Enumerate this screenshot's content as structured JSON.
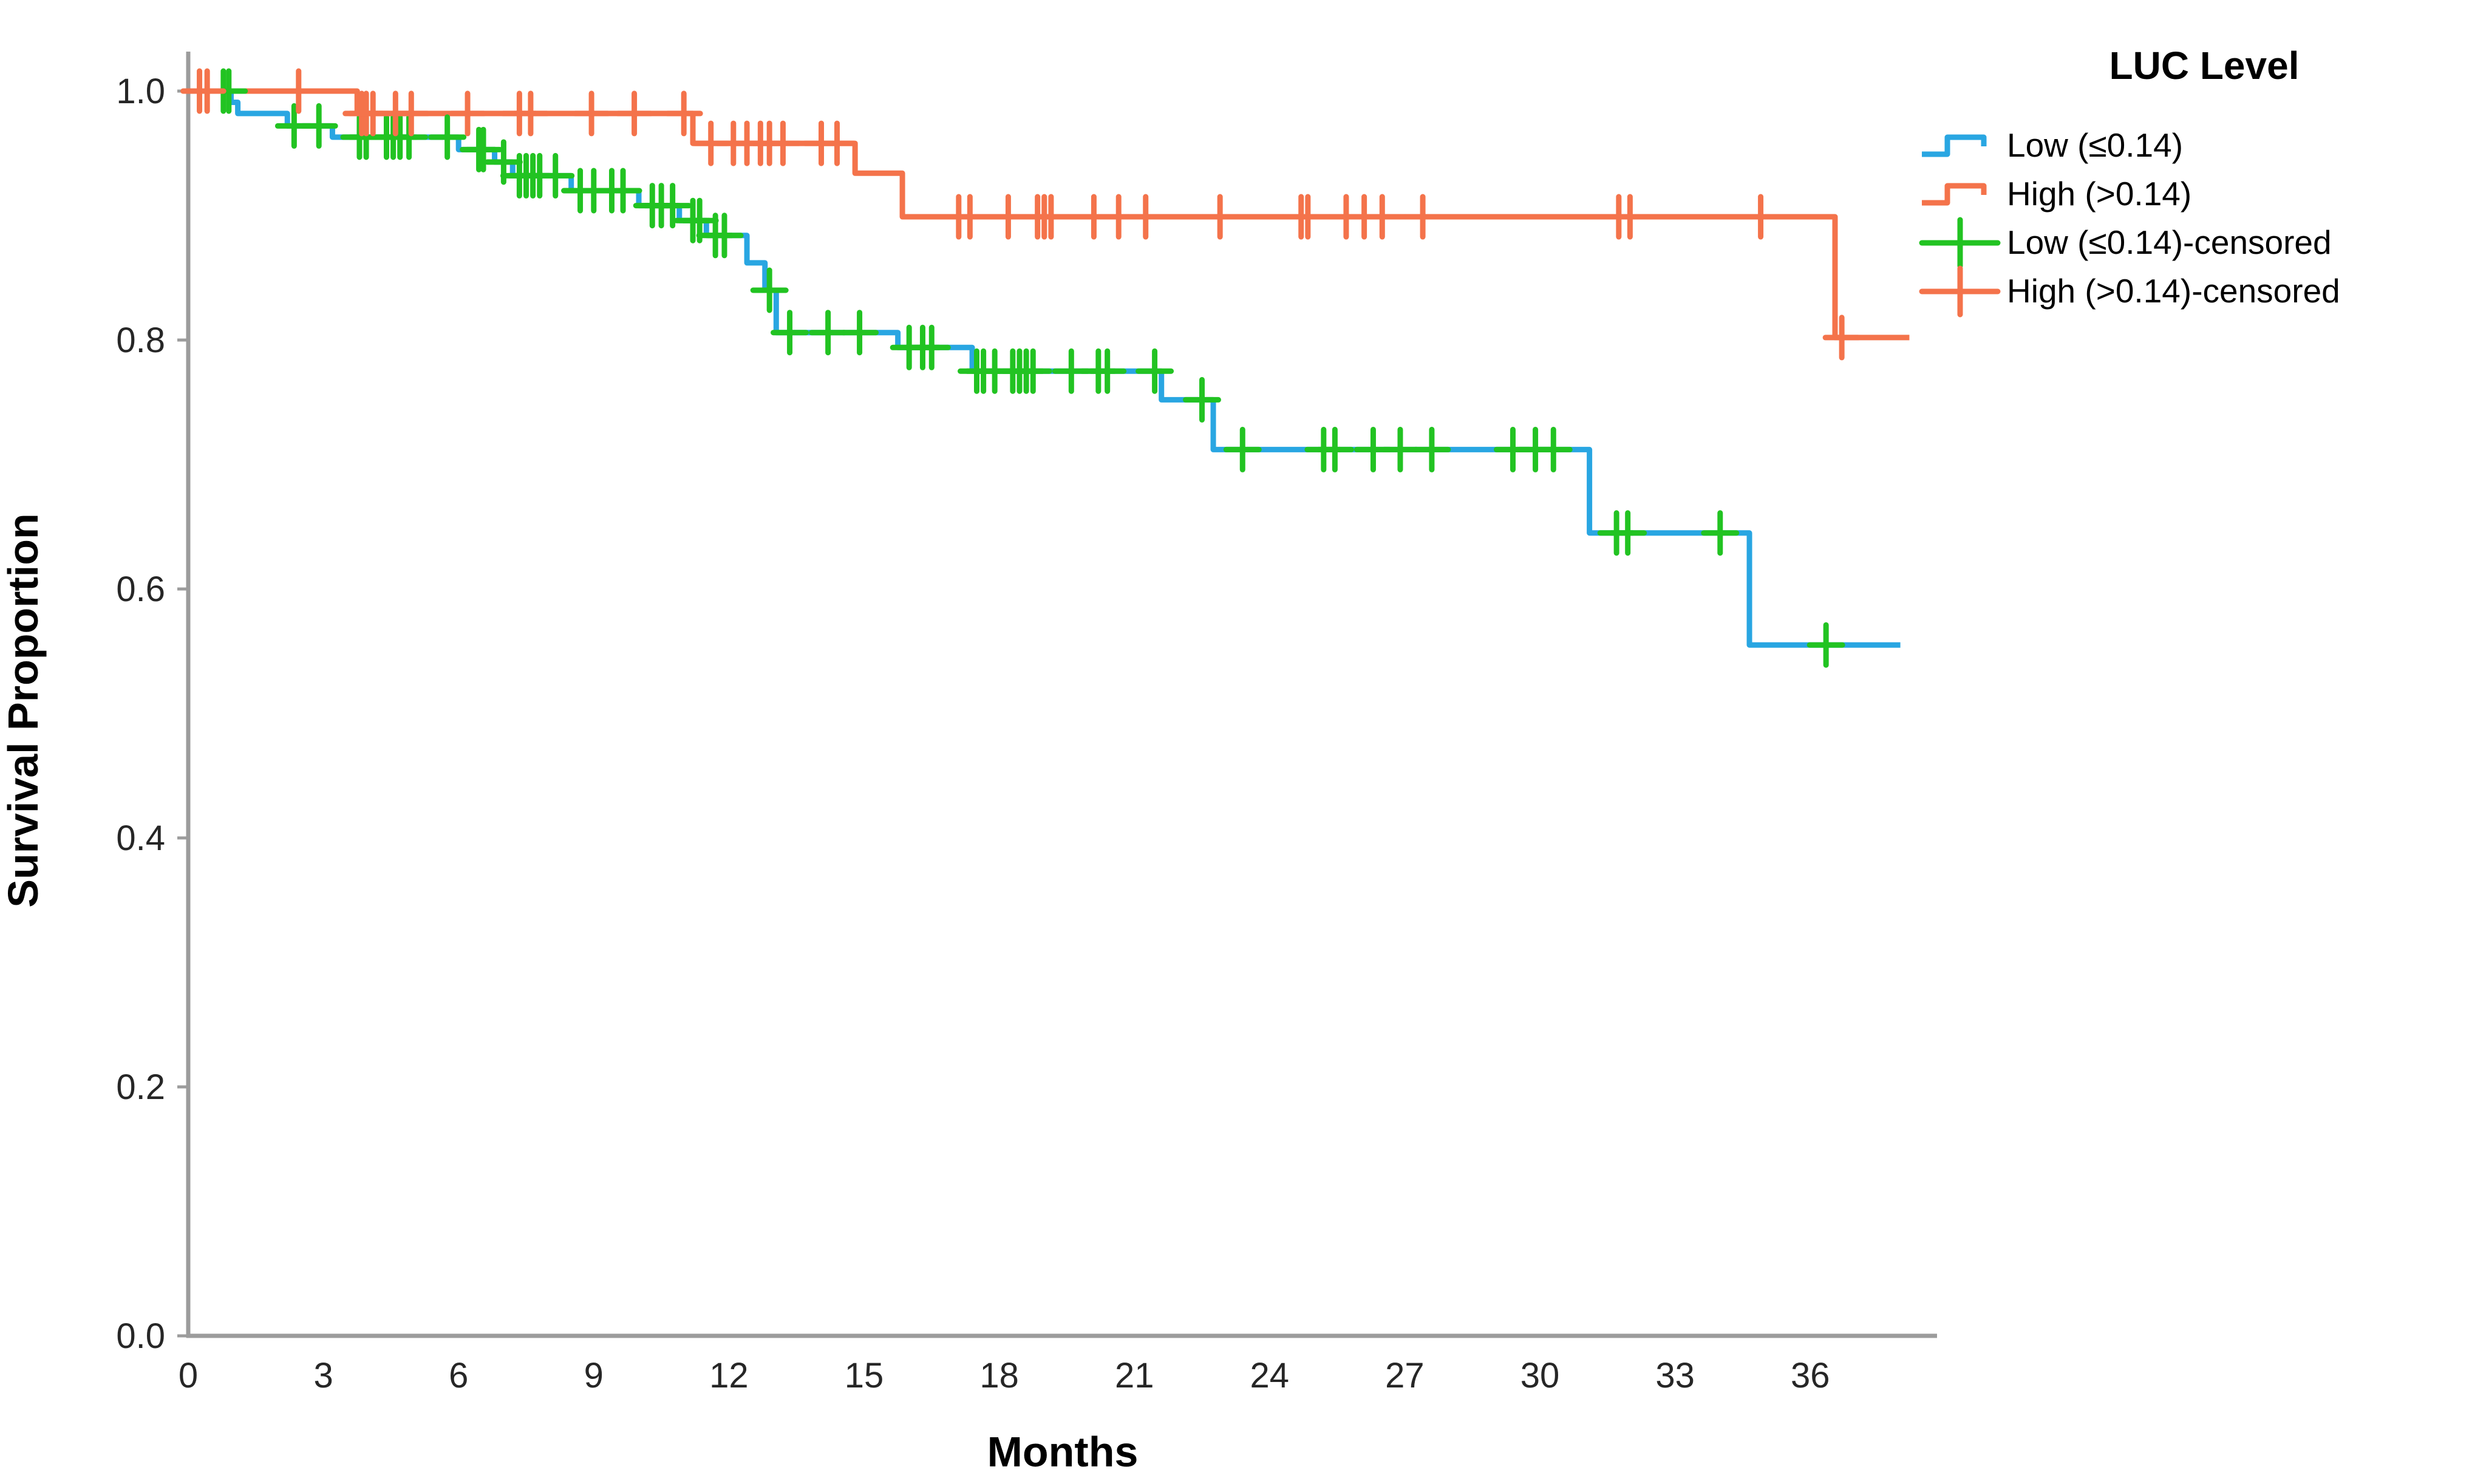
{
  "chart_data": {
    "type": "line",
    "subtype": "kaplan_meier_step",
    "title": "",
    "xlabel": "Months",
    "ylabel": "Survival Proportion",
    "xlim": [
      0,
      38.8
    ],
    "ylim": [
      0.0,
      1.0
    ],
    "grid": false,
    "x_ticks": [
      0,
      3,
      6,
      9,
      12,
      15,
      18,
      21,
      24,
      27,
      30,
      33,
      36
    ],
    "x_tick_labels": [
      "0",
      "3",
      "6",
      "9",
      "12",
      "15",
      "18",
      "21",
      "24",
      "27",
      "30",
      "33",
      "36"
    ],
    "y_ticks": [
      1.0,
      0.8,
      0.6,
      0.4,
      0.2,
      0.0
    ],
    "y_tick_labels": [
      "1.0",
      "0.8",
      "0.6",
      "0.4",
      "0.2",
      "0.0"
    ],
    "colors": {
      "low_line": "#29A6E2",
      "high_line": "#F4734B",
      "low_censor": "#22C322",
      "high_censor": "#F4734B",
      "axis": "#9C9C9C",
      "text": "#1a1a1a",
      "background": "#ffffff"
    },
    "legend": {
      "title": "LUC Level",
      "position": "top-right",
      "entries": [
        {
          "label": "Low (≤0.14)",
          "color": "#29A6E2",
          "key": "step"
        },
        {
          "label": "High (>0.14)",
          "color": "#F4734B",
          "key": "step"
        },
        {
          "label": "Low (≤0.14)-censored",
          "color": "#22C322",
          "key": "plus"
        },
        {
          "label": "High (>0.14)-censored",
          "color": "#F4734B",
          "key": "plus"
        }
      ]
    },
    "series": [
      {
        "name": "Low (≤0.14)",
        "color": "#29A6E2",
        "censor_color": "#22C322",
        "end_x": 38.0,
        "steps": [
          [
            0,
            1.0
          ],
          [
            0.95,
            0.991
          ],
          [
            1.1,
            0.982
          ],
          [
            2.2,
            0.972
          ],
          [
            3.2,
            0.963
          ],
          [
            6.0,
            0.953
          ],
          [
            6.8,
            0.943
          ],
          [
            7.2,
            0.932
          ],
          [
            8.5,
            0.92
          ],
          [
            10.0,
            0.908
          ],
          [
            10.9,
            0.896
          ],
          [
            11.5,
            0.884
          ],
          [
            12.4,
            0.862
          ],
          [
            12.8,
            0.84
          ],
          [
            13.05,
            0.806
          ],
          [
            15.75,
            0.794
          ],
          [
            17.4,
            0.775
          ],
          [
            21.6,
            0.752
          ],
          [
            22.75,
            0.712
          ],
          [
            31.1,
            0.645
          ],
          [
            34.65,
            0.555
          ]
        ],
        "censored": [
          [
            0.78,
            1.0
          ],
          [
            0.9,
            1.0
          ],
          [
            2.35,
            0.972
          ],
          [
            2.9,
            0.972
          ],
          [
            3.8,
            0.963
          ],
          [
            3.95,
            0.963
          ],
          [
            4.4,
            0.963
          ],
          [
            4.55,
            0.963
          ],
          [
            4.7,
            0.963
          ],
          [
            4.9,
            0.963
          ],
          [
            5.75,
            0.963
          ],
          [
            6.45,
            0.953
          ],
          [
            6.55,
            0.953
          ],
          [
            7.0,
            0.943
          ],
          [
            7.35,
            0.932
          ],
          [
            7.5,
            0.932
          ],
          [
            7.65,
            0.932
          ],
          [
            7.8,
            0.932
          ],
          [
            8.15,
            0.932
          ],
          [
            8.7,
            0.92
          ],
          [
            9.0,
            0.92
          ],
          [
            9.4,
            0.92
          ],
          [
            9.65,
            0.92
          ],
          [
            10.3,
            0.908
          ],
          [
            10.5,
            0.908
          ],
          [
            10.75,
            0.908
          ],
          [
            11.2,
            0.896
          ],
          [
            11.35,
            0.896
          ],
          [
            11.7,
            0.884
          ],
          [
            11.9,
            0.884
          ],
          [
            12.9,
            0.84
          ],
          [
            13.35,
            0.806
          ],
          [
            14.2,
            0.806
          ],
          [
            14.9,
            0.806
          ],
          [
            16.0,
            0.794
          ],
          [
            16.3,
            0.794
          ],
          [
            16.5,
            0.794
          ],
          [
            17.5,
            0.775
          ],
          [
            17.65,
            0.775
          ],
          [
            17.9,
            0.775
          ],
          [
            18.3,
            0.775
          ],
          [
            18.45,
            0.775
          ],
          [
            18.6,
            0.775
          ],
          [
            18.75,
            0.775
          ],
          [
            19.6,
            0.775
          ],
          [
            20.2,
            0.775
          ],
          [
            20.4,
            0.775
          ],
          [
            21.45,
            0.775
          ],
          [
            22.5,
            0.752
          ],
          [
            23.4,
            0.712
          ],
          [
            25.2,
            0.712
          ],
          [
            25.45,
            0.712
          ],
          [
            26.3,
            0.712
          ],
          [
            26.9,
            0.712
          ],
          [
            27.6,
            0.712
          ],
          [
            29.4,
            0.712
          ],
          [
            29.9,
            0.712
          ],
          [
            30.3,
            0.712
          ],
          [
            31.7,
            0.645
          ],
          [
            31.95,
            0.645
          ],
          [
            34.0,
            0.645
          ],
          [
            36.35,
            0.555
          ]
        ]
      },
      {
        "name": "High (>0.14)",
        "color": "#F4734B",
        "censor_color": "#F4734B",
        "end_x": 38.2,
        "steps": [
          [
            0,
            1.0
          ],
          [
            3.75,
            0.982
          ],
          [
            11.2,
            0.958
          ],
          [
            14.8,
            0.934
          ],
          [
            15.85,
            0.899
          ],
          [
            36.55,
            0.802
          ]
        ],
        "censored": [
          [
            0.25,
            1.0
          ],
          [
            0.42,
            1.0
          ],
          [
            2.45,
            1.0
          ],
          [
            3.85,
            0.982
          ],
          [
            3.95,
            0.982
          ],
          [
            4.1,
            0.982
          ],
          [
            4.6,
            0.982
          ],
          [
            4.95,
            0.982
          ],
          [
            6.2,
            0.982
          ],
          [
            7.35,
            0.982
          ],
          [
            7.6,
            0.982
          ],
          [
            8.95,
            0.982
          ],
          [
            9.9,
            0.982
          ],
          [
            11.0,
            0.982
          ],
          [
            11.6,
            0.958
          ],
          [
            12.1,
            0.958
          ],
          [
            12.4,
            0.958
          ],
          [
            12.7,
            0.958
          ],
          [
            12.9,
            0.958
          ],
          [
            13.2,
            0.958
          ],
          [
            14.05,
            0.958
          ],
          [
            14.4,
            0.958
          ],
          [
            17.1,
            0.899
          ],
          [
            17.35,
            0.899
          ],
          [
            18.2,
            0.899
          ],
          [
            18.85,
            0.899
          ],
          [
            19.0,
            0.899
          ],
          [
            19.15,
            0.899
          ],
          [
            20.1,
            0.899
          ],
          [
            20.65,
            0.899
          ],
          [
            21.25,
            0.899
          ],
          [
            22.9,
            0.899
          ],
          [
            24.7,
            0.899
          ],
          [
            24.85,
            0.899
          ],
          [
            25.7,
            0.899
          ],
          [
            26.1,
            0.899
          ],
          [
            26.5,
            0.899
          ],
          [
            27.4,
            0.899
          ],
          [
            31.75,
            0.899
          ],
          [
            32.0,
            0.899
          ],
          [
            34.9,
            0.899
          ],
          [
            36.7,
            0.802
          ]
        ]
      }
    ]
  }
}
